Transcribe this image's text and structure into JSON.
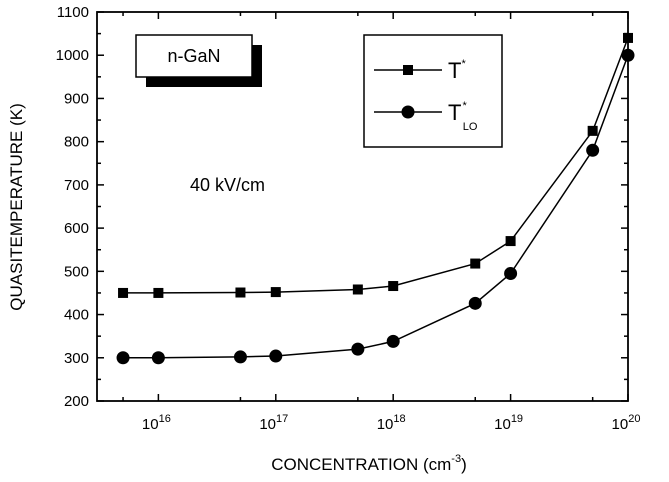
{
  "chart_data": {
    "type": "line",
    "x_scale": "log",
    "xlim": [
      3000000000000000.0,
      1e+20
    ],
    "ylim": [
      200,
      1100
    ],
    "xlabel": "CONCENTRATION (cm",
    "xlabel_sup": "-3",
    "xlabel_tail": ")",
    "ylabel": "QUASITEMPERATURE (K)",
    "x_ticks": [
      {
        "base": "10",
        "exp": "16",
        "value": 1e+16
      },
      {
        "base": "10",
        "exp": "17",
        "value": 1e+17
      },
      {
        "base": "10",
        "exp": "18",
        "value": 1e+18
      },
      {
        "base": "10",
        "exp": "19",
        "value": 1e+19
      },
      {
        "base": "10",
        "exp": "20",
        "value": 1e+20
      }
    ],
    "y_ticks": [
      "200",
      "300",
      "400",
      "500",
      "600",
      "700",
      "800",
      "900",
      "1000",
      "1100"
    ],
    "annotations": {
      "sample_label": "n-GaN",
      "field_label": "40 kV/cm"
    },
    "legend": {
      "placement": "top-right",
      "entries": [
        {
          "base": "T",
          "sup": "*",
          "sub": "",
          "marker": "square"
        },
        {
          "base": "T",
          "sup": "*",
          "sub": "LO",
          "marker": "circle"
        }
      ]
    },
    "series": [
      {
        "marker": "square",
        "points": [
          {
            "x": 5000000000000000.0,
            "y": 450
          },
          {
            "x": 1e+16,
            "y": 450
          },
          {
            "x": 5e+16,
            "y": 451
          },
          {
            "x": 1e+17,
            "y": 452
          },
          {
            "x": 5e+17,
            "y": 458
          },
          {
            "x": 1e+18,
            "y": 466
          },
          {
            "x": 5e+18,
            "y": 518
          },
          {
            "x": 1e+19,
            "y": 570
          },
          {
            "x": 5e+19,
            "y": 825
          },
          {
            "x": 1e+20,
            "y": 1040
          }
        ]
      },
      {
        "marker": "circle",
        "points": [
          {
            "x": 5000000000000000.0,
            "y": 300
          },
          {
            "x": 1e+16,
            "y": 300
          },
          {
            "x": 5e+16,
            "y": 302
          },
          {
            "x": 1e+17,
            "y": 304
          },
          {
            "x": 5e+17,
            "y": 320
          },
          {
            "x": 1e+18,
            "y": 338
          },
          {
            "x": 5e+18,
            "y": 426
          },
          {
            "x": 1e+19,
            "y": 495
          },
          {
            "x": 5e+19,
            "y": 780
          },
          {
            "x": 1e+20,
            "y": 1000
          }
        ]
      }
    ]
  }
}
